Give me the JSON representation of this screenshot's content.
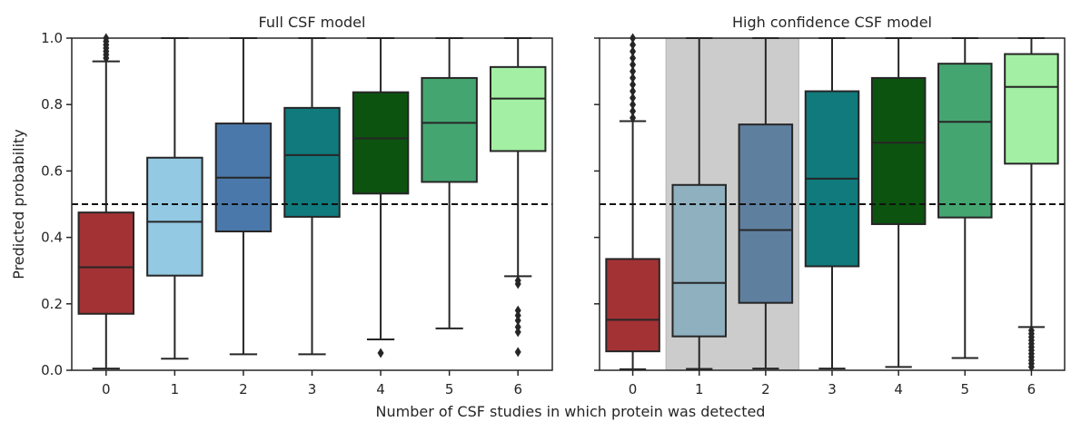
{
  "figure": {
    "ylabel": "Predicted probability",
    "xlabel": "Number of CSF studies in which protein was detected"
  },
  "chart_data": [
    {
      "type": "box",
      "title": "Full CSF model",
      "categories": [
        "0",
        "1",
        "2",
        "3",
        "4",
        "5",
        "6"
      ],
      "ylim": [
        0.0,
        1.0
      ],
      "yticks": [
        "0.0",
        "0.2",
        "0.4",
        "0.6",
        "0.8",
        "1.0"
      ],
      "threshold": 0.5,
      "boxes": [
        {
          "category": "0",
          "color": "#a33235",
          "whisker_low": 0.005,
          "q1": 0.17,
          "median": 0.31,
          "q3": 0.475,
          "whisker_high": 0.93,
          "outliers": [
            0.94,
            0.95,
            0.96,
            0.97,
            0.98,
            0.99,
            1.0
          ]
        },
        {
          "category": "1",
          "color": "#93c9e2",
          "whisker_low": 0.035,
          "q1": 0.285,
          "median": 0.447,
          "q3": 0.64,
          "whisker_high": 1.0,
          "outliers": []
        },
        {
          "category": "2",
          "color": "#4a78aa",
          "whisker_low": 0.048,
          "q1": 0.418,
          "median": 0.58,
          "q3": 0.743,
          "whisker_high": 1.0,
          "outliers": []
        },
        {
          "category": "3",
          "color": "#107a7c",
          "whisker_low": 0.048,
          "q1": 0.462,
          "median": 0.648,
          "q3": 0.79,
          "whisker_high": 1.0,
          "outliers": []
        },
        {
          "category": "4",
          "color": "#0c5310",
          "whisker_low": 0.093,
          "q1": 0.532,
          "median": 0.698,
          "q3": 0.837,
          "whisker_high": 1.0,
          "outliers": [
            0.052
          ]
        },
        {
          "category": "5",
          "color": "#45a571",
          "whisker_low": 0.126,
          "q1": 0.567,
          "median": 0.745,
          "q3": 0.88,
          "whisker_high": 1.0,
          "outliers": []
        },
        {
          "category": "6",
          "color": "#a3efa3",
          "whisker_low": 0.283,
          "q1": 0.66,
          "median": 0.818,
          "q3": 0.913,
          "whisker_high": 1.0,
          "outliers": [
            0.27,
            0.26,
            0.18,
            0.165,
            0.15,
            0.13,
            0.115,
            0.055
          ]
        }
      ]
    },
    {
      "type": "box",
      "title": "High confidence CSF model",
      "categories": [
        "0",
        "1",
        "2",
        "3",
        "4",
        "5",
        "6"
      ],
      "ylim": [
        0.0,
        1.0
      ],
      "threshold": 0.5,
      "shaded_categories": [
        "1",
        "2"
      ],
      "boxes": [
        {
          "category": "0",
          "color": "#a33235",
          "whisker_low": 0.003,
          "q1": 0.057,
          "median": 0.152,
          "q3": 0.335,
          "whisker_high": 0.75,
          "outliers": [
            0.76,
            0.78,
            0.8,
            0.82,
            0.84,
            0.86,
            0.88,
            0.9,
            0.92,
            0.94,
            0.96,
            0.98,
            1.0
          ]
        },
        {
          "category": "1",
          "color": "#8eb0bf",
          "whisker_low": 0.004,
          "q1": 0.102,
          "median": 0.263,
          "q3": 0.558,
          "whisker_high": 1.0,
          "outliers": []
        },
        {
          "category": "2",
          "color": "#5f7f9f",
          "whisker_low": 0.005,
          "q1": 0.203,
          "median": 0.422,
          "q3": 0.74,
          "whisker_high": 1.0,
          "outliers": []
        },
        {
          "category": "3",
          "color": "#107a7c",
          "whisker_low": 0.005,
          "q1": 0.313,
          "median": 0.577,
          "q3": 0.84,
          "whisker_high": 1.0,
          "outliers": []
        },
        {
          "category": "4",
          "color": "#0c5310",
          "whisker_low": 0.01,
          "q1": 0.44,
          "median": 0.685,
          "q3": 0.88,
          "whisker_high": 1.0,
          "outliers": []
        },
        {
          "category": "5",
          "color": "#45a571",
          "whisker_low": 0.037,
          "q1": 0.46,
          "median": 0.748,
          "q3": 0.923,
          "whisker_high": 1.0,
          "outliers": []
        },
        {
          "category": "6",
          "color": "#a3efa3",
          "whisker_low": 0.13,
          "q1": 0.622,
          "median": 0.853,
          "q3": 0.952,
          "whisker_high": 1.0,
          "outliers": [
            0.12,
            0.11,
            0.1,
            0.09,
            0.08,
            0.07,
            0.06,
            0.05,
            0.04,
            0.03,
            0.02,
            0.01
          ]
        }
      ]
    }
  ]
}
